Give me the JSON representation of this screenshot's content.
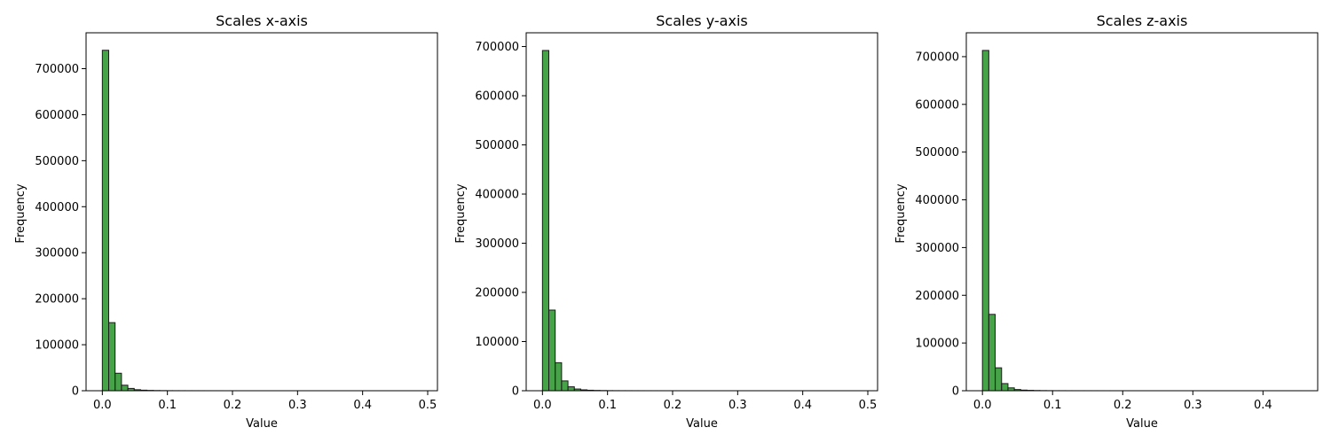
{
  "chart_data": [
    {
      "type": "bar",
      "title": "Scales x-axis",
      "xlabel": "Value",
      "ylabel": "Frequency",
      "xlim": [
        -0.025,
        0.515
      ],
      "ylim": [
        0,
        778000
      ],
      "xticks": [
        0.0,
        0.1,
        0.2,
        0.3,
        0.4,
        0.5
      ],
      "xtick_labels": [
        "0.0",
        "0.1",
        "0.2",
        "0.3",
        "0.4",
        "0.5"
      ],
      "yticks": [
        0,
        100000,
        200000,
        300000,
        400000,
        500000,
        600000,
        700000
      ],
      "ytick_labels": [
        "0",
        "100000",
        "200000",
        "300000",
        "400000",
        "500000",
        "600000",
        "700000"
      ],
      "bin_edges_start": 0.0,
      "bin_width": 0.0098,
      "values": [
        740000,
        148000,
        38000,
        12000,
        5000,
        2200,
        1200,
        700,
        400,
        250,
        150,
        100,
        80,
        60,
        50,
        40,
        30,
        25,
        20,
        15,
        12,
        10,
        8,
        6,
        5,
        4,
        3,
        3,
        2,
        2,
        2,
        1,
        1,
        1,
        1,
        1,
        1,
        1,
        1,
        1,
        1,
        1,
        1,
        1,
        1,
        1,
        1,
        1,
        1,
        1
      ]
    },
    {
      "type": "bar",
      "title": "Scales y-axis",
      "xlabel": "Value",
      "ylabel": "Frequency",
      "xlim": [
        -0.025,
        0.515
      ],
      "ylim": [
        0,
        728000
      ],
      "xticks": [
        0.0,
        0.1,
        0.2,
        0.3,
        0.4,
        0.5
      ],
      "xtick_labels": [
        "0.0",
        "0.1",
        "0.2",
        "0.3",
        "0.4",
        "0.5"
      ],
      "yticks": [
        0,
        100000,
        200000,
        300000,
        400000,
        500000,
        600000,
        700000
      ],
      "ytick_labels": [
        "0",
        "100000",
        "200000",
        "300000",
        "400000",
        "500000",
        "600000",
        "700000"
      ],
      "bin_edges_start": 0.0,
      "bin_width": 0.0098,
      "values": [
        692000,
        164000,
        57000,
        20000,
        8000,
        3500,
        1800,
        1000,
        600,
        350,
        200,
        130,
        90,
        70,
        50,
        40,
        30,
        25,
        20,
        15,
        12,
        10,
        8,
        6,
        5,
        4,
        3,
        3,
        2,
        2,
        2,
        1,
        1,
        1,
        1,
        1,
        1,
        1,
        1,
        1,
        1,
        1,
        1,
        1,
        1,
        1,
        1,
        1,
        1,
        1
      ]
    },
    {
      "type": "bar",
      "title": "Scales z-axis",
      "xlabel": "Value",
      "ylabel": "Frequency",
      "xlim": [
        -0.023,
        0.478
      ],
      "ylim": [
        0,
        750000
      ],
      "xticks": [
        0.0,
        0.1,
        0.2,
        0.3,
        0.4
      ],
      "xtick_labels": [
        "0.0",
        "0.1",
        "0.2",
        "0.3",
        "0.4"
      ],
      "yticks": [
        0,
        100000,
        200000,
        300000,
        400000,
        500000,
        600000,
        700000
      ],
      "ytick_labels": [
        "0",
        "100000",
        "200000",
        "300000",
        "400000",
        "500000",
        "600000",
        "700000"
      ],
      "bin_edges_start": 0.0,
      "bin_width": 0.0091,
      "values": [
        713000,
        160000,
        48000,
        15000,
        6000,
        2500,
        1300,
        800,
        450,
        280,
        170,
        110,
        80,
        60,
        45,
        35,
        28,
        22,
        18,
        14,
        11,
        9,
        7,
        5,
        4,
        4,
        3,
        2,
        2,
        2,
        1,
        1,
        1,
        1,
        1,
        1,
        1,
        1,
        1,
        1,
        1,
        1,
        1,
        1,
        1,
        1,
        1,
        1,
        1,
        1
      ]
    }
  ]
}
